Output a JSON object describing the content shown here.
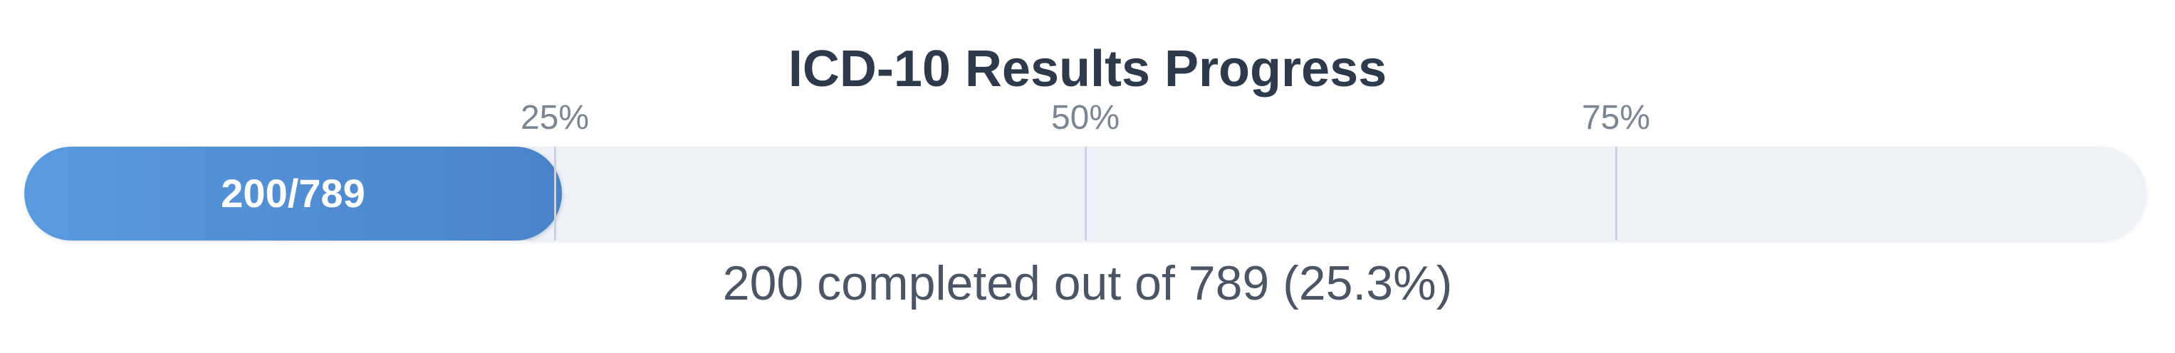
{
  "header": {
    "title": "ICD-10 Results Progress"
  },
  "progress": {
    "completed": 200,
    "total": 789,
    "percent": 25.3,
    "fill_label": "200/789",
    "summary": "200 completed out of 789 (25.3%)",
    "milestones": [
      {
        "label": "25%",
        "value": 25
      },
      {
        "label": "50%",
        "value": 50
      },
      {
        "label": "75%",
        "value": 75
      }
    ]
  },
  "colors": {
    "fill_start": "#5a9be0",
    "fill_end": "#4a82c9",
    "track": "#eef1f5",
    "title": "#2d3a4b"
  }
}
